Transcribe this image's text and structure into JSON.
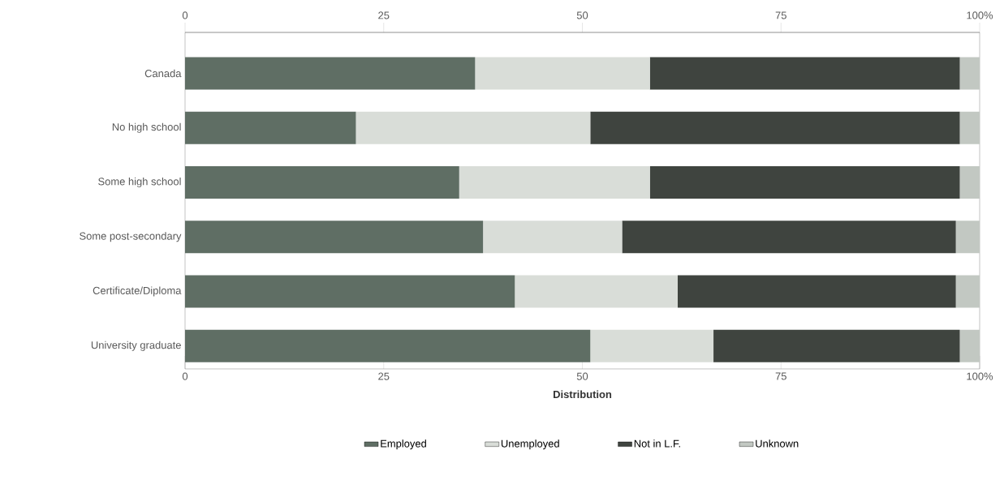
{
  "chart_data": {
    "type": "bar",
    "orientation": "horizontal",
    "stacked": true,
    "xlabel": "Distribution",
    "categories": [
      "Canada",
      "No high school",
      "Some high school",
      "Some post-secondary",
      "Certificate/Diploma",
      "University graduate"
    ],
    "series": [
      {
        "name": "Employed",
        "color": "#5f6e64",
        "values": [
          36.5,
          21.5,
          34.5,
          37.5,
          41.5,
          51
        ]
      },
      {
        "name": "Unemployed",
        "color": "#d9ddd8",
        "values": [
          22,
          29.5,
          24,
          17.5,
          20.5,
          15.5
        ]
      },
      {
        "name": "Not in L.F.",
        "color": "#3f443f",
        "values": [
          39,
          46.5,
          39,
          42,
          35,
          31
        ]
      },
      {
        "name": "Unknown",
        "color": "#c2c8c2",
        "values": [
          2.5,
          2.5,
          2.5,
          3,
          3,
          2.5
        ]
      }
    ],
    "xlim": [
      0,
      100
    ],
    "xticks": [
      0,
      25,
      50,
      75,
      {
        "value": 100,
        "label": "100%"
      }
    ],
    "x2lim": [
      0,
      100
    ],
    "x2ticks": [
      0,
      25,
      50,
      75,
      {
        "value": 100,
        "label": "100%"
      }
    ],
    "legend": "bottom",
    "grid": false
  }
}
